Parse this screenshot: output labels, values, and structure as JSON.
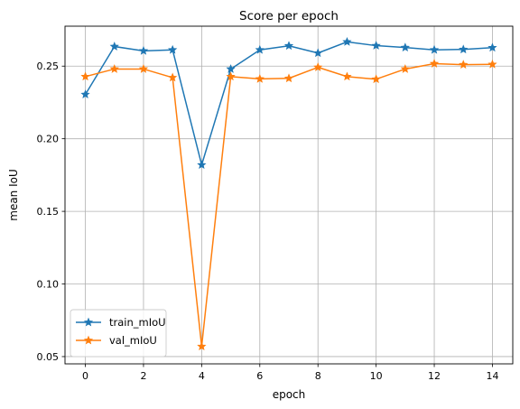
{
  "chart_data": {
    "type": "line",
    "title": "Score per epoch",
    "xlabel": "epoch",
    "ylabel": "mean IoU",
    "xlim": [
      -0.7,
      14.7
    ],
    "ylim": [
      0.045,
      0.2775
    ],
    "xticks": [
      0,
      2,
      4,
      6,
      8,
      10,
      12,
      14
    ],
    "xtick_labels": [
      "0",
      "2",
      "4",
      "6",
      "8",
      "10",
      "12",
      "14"
    ],
    "yticks": [
      0.05,
      0.1,
      0.15,
      0.2,
      0.25
    ],
    "ytick_labels": [
      "0.05",
      "0.10",
      "0.15",
      "0.20",
      "0.25"
    ],
    "grid": true,
    "legend_position": "lower-left",
    "marker": "star",
    "x": [
      0,
      1,
      2,
      3,
      4,
      5,
      6,
      7,
      8,
      9,
      10,
      11,
      12,
      13,
      14
    ],
    "series": [
      {
        "name": "train_mIoU",
        "color": "#1f77b4",
        "values": [
          0.2305,
          0.2635,
          0.2605,
          0.2612,
          0.182,
          0.248,
          0.2612,
          0.264,
          0.259,
          0.2667,
          0.2641,
          0.2628,
          0.2612,
          0.2615,
          0.2627
        ]
      },
      {
        "name": "val_mIoU",
        "color": "#ff7f0e",
        "values": [
          0.2428,
          0.248,
          0.248,
          0.2421,
          0.057,
          0.2428,
          0.2412,
          0.2416,
          0.2492,
          0.2428,
          0.241,
          0.248,
          0.2517,
          0.251,
          0.2512
        ]
      }
    ]
  }
}
